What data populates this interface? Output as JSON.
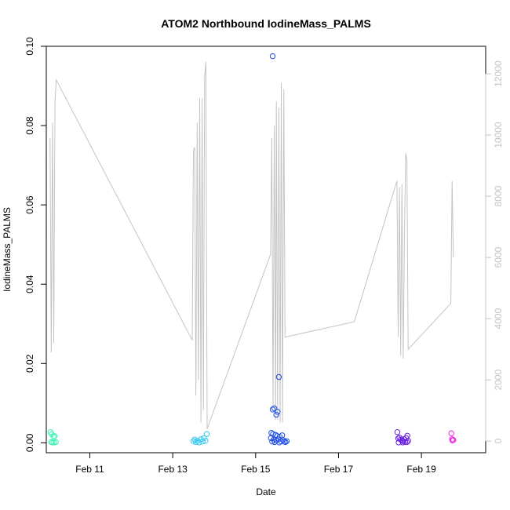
{
  "chart_data": {
    "type": "scatter",
    "title": "ATOM2 Northbound IodineMass_PALMS",
    "xlabel": "Date",
    "ylabel": "IodineMass_PALMS",
    "x_unit": "days in February",
    "xlim": [
      9.95,
      20.55
    ],
    "ylim": [
      -0.0025,
      0.1
    ],
    "y2lim": [
      -380,
      12900
    ],
    "grid": false,
    "legend": "none",
    "x_ticks": [
      {
        "value": 11,
        "label": "Feb 11"
      },
      {
        "value": 13,
        "label": "Feb 13"
      },
      {
        "value": 15,
        "label": "Feb 15"
      },
      {
        "value": 17,
        "label": "Feb 17"
      },
      {
        "value": 19,
        "label": "Feb 19"
      }
    ],
    "y_ticks": [
      {
        "value": 0.0,
        "label": "0.00"
      },
      {
        "value": 0.02,
        "label": "0.02"
      },
      {
        "value": 0.04,
        "label": "0.04"
      },
      {
        "value": 0.06,
        "label": "0.06"
      },
      {
        "value": 0.08,
        "label": "0.08"
      },
      {
        "value": 0.1,
        "label": "0.10"
      }
    ],
    "y2_ticks": [
      {
        "value": 0,
        "label": "0"
      },
      {
        "value": 2000,
        "label": "2000"
      },
      {
        "value": 4000,
        "label": "4000"
      },
      {
        "value": 6000,
        "label": "6000"
      },
      {
        "value": 8000,
        "label": "8000"
      },
      {
        "value": 10000,
        "label": "10000"
      },
      {
        "value": 12000,
        "label": "12000"
      }
    ],
    "colors": {
      "axis": "#000000",
      "altitude_line": "#c4c4c4",
      "right_axis": "#c4c4c4"
    },
    "altitude_series": {
      "axis": "right",
      "points": [
        [
          10.04,
          9900
        ],
        [
          10.07,
          2900
        ],
        [
          10.1,
          10400
        ],
        [
          10.13,
          3200
        ],
        [
          10.16,
          11100
        ],
        [
          10.19,
          11800
        ],
        [
          13.47,
          3300
        ],
        [
          13.5,
          9500
        ],
        [
          13.53,
          9600
        ],
        [
          13.56,
          1500
        ],
        [
          13.59,
          10400
        ],
        [
          13.62,
          2000
        ],
        [
          13.65,
          11200
        ],
        [
          13.68,
          600
        ],
        [
          13.71,
          11200
        ],
        [
          13.74,
          1000
        ],
        [
          13.77,
          11900
        ],
        [
          13.8,
          12400
        ],
        [
          13.83,
          400
        ],
        [
          15.36,
          6100
        ],
        [
          15.39,
          9900
        ],
        [
          15.42,
          1100
        ],
        [
          15.45,
          10300
        ],
        [
          15.48,
          700
        ],
        [
          15.5,
          11100
        ],
        [
          15.53,
          700
        ],
        [
          15.56,
          10900
        ],
        [
          15.59,
          600
        ],
        [
          15.62,
          11700
        ],
        [
          15.65,
          600
        ],
        [
          15.68,
          11500
        ],
        [
          15.71,
          3400
        ],
        [
          17.38,
          3900
        ],
        [
          18.41,
          8500
        ],
        [
          18.44,
          3400
        ],
        [
          18.47,
          8300
        ],
        [
          18.5,
          2800
        ],
        [
          18.53,
          8400
        ],
        [
          18.56,
          2700
        ],
        [
          18.59,
          6700
        ],
        [
          18.62,
          9400
        ],
        [
          18.65,
          9200
        ],
        [
          18.68,
          3000
        ],
        [
          19.71,
          4500
        ],
        [
          19.74,
          8500
        ],
        [
          19.77,
          6000
        ]
      ]
    },
    "series": [
      {
        "color": "#3cf2b3",
        "points": [
          [
            10.05,
            0.0027
          ],
          [
            10.08,
            0.0022
          ],
          [
            10.12,
            0.0016
          ],
          [
            10.15,
            0.0017
          ],
          [
            10.07,
            0.0002
          ],
          [
            10.1,
            0.0001
          ],
          [
            10.14,
            0.0001
          ],
          [
            10.18,
            0.0002
          ]
        ]
      },
      {
        "color": "#33c9f0",
        "points": [
          [
            13.5,
            0.0004
          ],
          [
            13.53,
            0.0008
          ],
          [
            13.56,
            0.0002
          ],
          [
            13.6,
            0.0005
          ],
          [
            13.64,
            0.0001
          ],
          [
            13.68,
            0.0009
          ],
          [
            13.72,
            0.0003
          ],
          [
            13.75,
            0.0012
          ],
          [
            13.79,
            0.0005
          ],
          [
            13.82,
            0.0022
          ]
        ]
      },
      {
        "color": "#1f4de6",
        "points": [
          [
            15.41,
            0.0975
          ],
          [
            15.56,
            0.0166
          ],
          [
            15.45,
            0.0087
          ],
          [
            15.41,
            0.0084
          ],
          [
            15.53,
            0.0078
          ],
          [
            15.5,
            0.0071
          ],
          [
            15.38,
            0.0025
          ],
          [
            15.42,
            0.0022
          ],
          [
            15.48,
            0.002
          ],
          [
            15.52,
            0.0017
          ],
          [
            15.58,
            0.0015
          ],
          [
            15.64,
            0.0019
          ],
          [
            15.37,
            0.0012
          ],
          [
            15.44,
            0.0008
          ],
          [
            15.5,
            0.0006
          ],
          [
            15.55,
            0.0009
          ],
          [
            15.61,
            0.0004
          ],
          [
            15.66,
            0.0007
          ],
          [
            15.4,
            0.0003
          ],
          [
            15.46,
            0.0002
          ],
          [
            15.57,
            0.0001
          ],
          [
            15.69,
            0.0003
          ],
          [
            15.72,
            0.0002
          ],
          [
            15.75,
            0.0004
          ]
        ]
      },
      {
        "color": "#6a1ee6",
        "points": [
          [
            18.42,
            0.0027
          ],
          [
            18.44,
            0.0011
          ],
          [
            18.47,
            0.0013
          ],
          [
            18.5,
            0.0008
          ],
          [
            18.53,
            0.0006
          ],
          [
            18.56,
            0.0004
          ],
          [
            18.58,
            0.0009
          ],
          [
            18.61,
            0.0002
          ],
          [
            18.63,
            0.0012
          ],
          [
            18.66,
            0.0018
          ],
          [
            18.68,
            0.0005
          ],
          [
            18.45,
            0.0001
          ],
          [
            18.55,
            0.0001
          ],
          [
            18.65,
            0.0002
          ]
        ]
      },
      {
        "color": "#ee22e6",
        "points": [
          [
            19.72,
            0.0024
          ],
          [
            19.74,
            0.0009
          ],
          [
            19.77,
            0.0007
          ],
          [
            19.75,
            0.0006
          ]
        ]
      }
    ]
  }
}
